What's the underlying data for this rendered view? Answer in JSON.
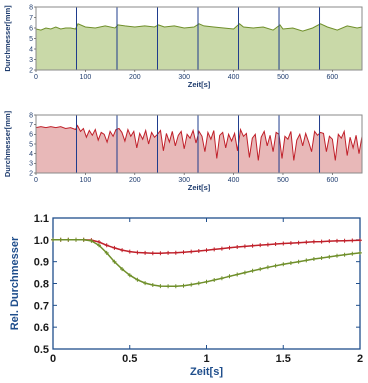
{
  "chart_data": [
    {
      "type": "area",
      "xlabel": "Zeit[s]",
      "ylabel": "Durchmesser[mm]",
      "xlim": [
        0,
        660
      ],
      "ylim": [
        2,
        8
      ],
      "xticks": [
        "0",
        "100",
        "200",
        "300",
        "400",
        "500",
        "600"
      ],
      "yticks": [
        "2",
        "3",
        "4",
        "5",
        "6",
        "7",
        "8"
      ],
      "segment_boundaries": [
        82,
        164,
        246,
        328,
        410,
        492,
        574
      ],
      "series": [
        {
          "color": "#6f8f2a",
          "fill": "#c9d9a8",
          "x": [
            0,
            10,
            20,
            30,
            40,
            50,
            60,
            70,
            80,
            85,
            100,
            120,
            140,
            160,
            166,
            180,
            200,
            220,
            240,
            248,
            260,
            280,
            300,
            320,
            330,
            340,
            360,
            380,
            400,
            412,
            420,
            440,
            460,
            480,
            494,
            500,
            520,
            540,
            560,
            576,
            590,
            610,
            630,
            650,
            660
          ],
          "values": [
            5.9,
            5.8,
            6.0,
            5.9,
            6.1,
            5.9,
            6.0,
            6.0,
            5.9,
            6.4,
            6.1,
            6.0,
            6.2,
            6.0,
            6.3,
            6.2,
            6.1,
            6.2,
            6.1,
            6.3,
            6.1,
            6.2,
            6.0,
            6.1,
            6.4,
            6.2,
            6.1,
            6.0,
            5.9,
            6.4,
            6.1,
            6.0,
            6.1,
            5.8,
            6.3,
            5.9,
            6.0,
            5.7,
            6.0,
            6.4,
            6.1,
            5.8,
            6.2,
            6.0,
            6.1
          ]
        }
      ]
    },
    {
      "type": "area",
      "xlabel": "Zeit[s]",
      "ylabel": "Durchmesser[mm]",
      "xlim": [
        0,
        660
      ],
      "ylim": [
        2,
        8
      ],
      "xticks": [
        "0",
        "100",
        "200",
        "300",
        "400",
        "500",
        "600"
      ],
      "yticks": [
        "2",
        "3",
        "4",
        "5",
        "6",
        "7",
        "8"
      ],
      "segment_boundaries": [
        82,
        164,
        246,
        328,
        410,
        492,
        574
      ],
      "series": [
        {
          "color": "#c0202a",
          "fill": "#e8b8b8",
          "x": [
            0,
            10,
            20,
            30,
            40,
            50,
            60,
            70,
            80,
            84,
            90,
            96,
            102,
            108,
            114,
            120,
            126,
            132,
            138,
            144,
            150,
            156,
            162,
            168,
            174,
            180,
            186,
            192,
            198,
            204,
            210,
            216,
            222,
            228,
            234,
            240,
            246,
            252,
            258,
            264,
            270,
            276,
            282,
            288,
            294,
            300,
            306,
            312,
            318,
            324,
            330,
            336,
            342,
            348,
            354,
            360,
            366,
            372,
            378,
            384,
            390,
            396,
            402,
            408,
            414,
            420,
            426,
            432,
            438,
            444,
            450,
            456,
            462,
            468,
            474,
            480,
            486,
            492,
            498,
            504,
            510,
            516,
            522,
            528,
            534,
            540,
            546,
            552,
            558,
            564,
            570,
            576,
            582,
            588,
            594,
            600,
            606,
            612,
            618,
            624,
            630,
            636,
            642,
            648,
            654,
            660
          ],
          "values": [
            6.7,
            6.8,
            6.7,
            6.8,
            6.7,
            6.8,
            6.6,
            6.7,
            6.5,
            6.9,
            6.3,
            6.6,
            5.7,
            6.4,
            5.9,
            6.5,
            5.4,
            6.2,
            6.0,
            5.2,
            6.3,
            5.8,
            6.5,
            6.6,
            6.2,
            5.3,
            6.5,
            5.8,
            6.3,
            4.6,
            6.1,
            5.5,
            6.4,
            5.0,
            6.2,
            5.7,
            6.0,
            6.4,
            4.3,
            6.1,
            5.2,
            6.3,
            4.8,
            5.9,
            6.3,
            4.5,
            6.0,
            5.6,
            6.4,
            5.1,
            6.3,
            5.8,
            4.2,
            6.2,
            5.5,
            6.4,
            3.5,
            5.9,
            6.2,
            4.6,
            6.0,
            5.3,
            6.1,
            4.3,
            6.5,
            5.8,
            6.1,
            3.6,
            5.6,
            6.0,
            3.3,
            5.7,
            6.3,
            4.8,
            5.9,
            4.2,
            6.2,
            6.0,
            3.5,
            5.8,
            5.5,
            6.3,
            3.3,
            5.4,
            6.0,
            4.8,
            6.1,
            5.2,
            4.2,
            6.3,
            5.9,
            6.2,
            6.1,
            4.2,
            5.8,
            5.5,
            3.3,
            6.0,
            5.6,
            6.3,
            3.8,
            5.7,
            4.6,
            5.9,
            4.0,
            5.8
          ]
        }
      ]
    },
    {
      "type": "line",
      "xlabel": "Zeit[s]",
      "ylabel": "Rel. Durchmesser",
      "xlim": [
        0,
        2
      ],
      "ylim": [
        0.5,
        1.1
      ],
      "xticks": [
        "0",
        "0.5",
        "1",
        "1.5",
        "2"
      ],
      "yticks": [
        "0.5",
        "0.6",
        "0.7",
        "0.8",
        "0.9",
        "1.0",
        "1.1"
      ],
      "grid": false,
      "series": [
        {
          "color": "#c0202a",
          "x": [
            0,
            0.05,
            0.1,
            0.15,
            0.2,
            0.25,
            0.3,
            0.35,
            0.4,
            0.45,
            0.5,
            0.55,
            0.6,
            0.65,
            0.7,
            0.75,
            0.8,
            0.85,
            0.9,
            0.95,
            1.0,
            1.05,
            1.1,
            1.15,
            1.2,
            1.25,
            1.3,
            1.35,
            1.4,
            1.45,
            1.5,
            1.55,
            1.6,
            1.65,
            1.7,
            1.75,
            1.8,
            1.85,
            1.9,
            1.95,
            2.0
          ],
          "values": [
            1.0,
            1.0,
            1.0,
            1.0,
            1.0,
            0.999,
            0.99,
            0.975,
            0.963,
            0.953,
            0.946,
            0.942,
            0.94,
            0.939,
            0.939,
            0.94,
            0.941,
            0.943,
            0.946,
            0.949,
            0.952,
            0.956,
            0.96,
            0.964,
            0.967,
            0.97,
            0.973,
            0.976,
            0.978,
            0.981,
            0.983,
            0.985,
            0.987,
            0.989,
            0.991,
            0.992,
            0.994,
            0.995,
            0.996,
            0.997,
            0.998
          ]
        },
        {
          "color": "#6f8f2a",
          "x": [
            0,
            0.05,
            0.1,
            0.15,
            0.2,
            0.25,
            0.3,
            0.35,
            0.4,
            0.45,
            0.5,
            0.55,
            0.6,
            0.65,
            0.7,
            0.75,
            0.8,
            0.85,
            0.9,
            0.95,
            1.0,
            1.05,
            1.1,
            1.15,
            1.2,
            1.25,
            1.3,
            1.35,
            1.4,
            1.45,
            1.5,
            1.55,
            1.6,
            1.65,
            1.7,
            1.75,
            1.8,
            1.85,
            1.9,
            1.95,
            2.0
          ],
          "values": [
            1.0,
            1.0,
            1.0,
            1.0,
            1.0,
            0.995,
            0.975,
            0.94,
            0.9,
            0.866,
            0.838,
            0.817,
            0.802,
            0.793,
            0.788,
            0.787,
            0.787,
            0.79,
            0.795,
            0.801,
            0.808,
            0.816,
            0.824,
            0.833,
            0.841,
            0.85,
            0.858,
            0.866,
            0.874,
            0.881,
            0.888,
            0.894,
            0.9,
            0.906,
            0.912,
            0.917,
            0.922,
            0.927,
            0.932,
            0.936,
            0.94
          ]
        }
      ]
    }
  ]
}
